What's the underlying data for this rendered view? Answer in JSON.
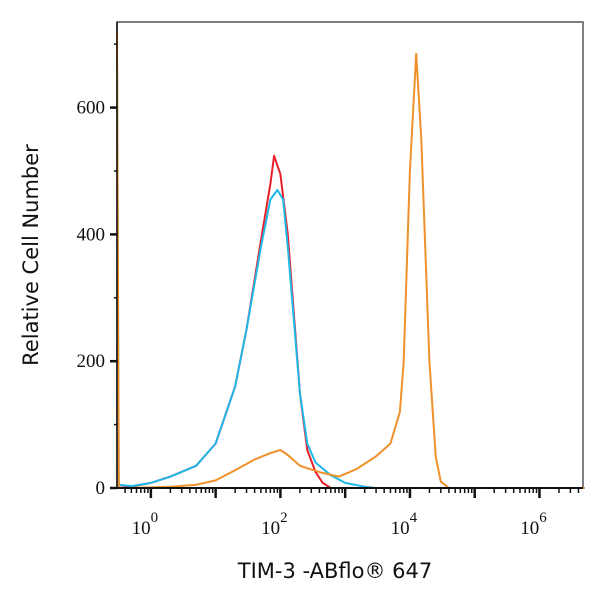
{
  "chart_data": {
    "type": "line",
    "title": "",
    "xlabel": "TIM-3 -ABflo® 647",
    "ylabel": "Relative Cell Number",
    "xscale": "log",
    "xlim": [
      0.3,
      4700000
    ],
    "ylim": [
      0,
      735
    ],
    "x_ticks": [
      {
        "value": 1,
        "base": "10",
        "exp": "0"
      },
      {
        "value": 100,
        "base": "10",
        "exp": "2"
      },
      {
        "value": 10000,
        "base": "10",
        "exp": "4"
      },
      {
        "value": 1000000,
        "base": "10",
        "exp": "6"
      }
    ],
    "y_ticks": [
      0,
      200,
      400,
      600
    ],
    "y_tick_labels": [
      "0",
      "200",
      "400",
      "600"
    ],
    "grid": false,
    "legend": "none",
    "series": [
      {
        "color": "#e8202a",
        "x": [
          0.3,
          0.5,
          1,
          2,
          5,
          10,
          20,
          30,
          50,
          70,
          80,
          100,
          130,
          160,
          200,
          260,
          350,
          450,
          600,
          1000,
          5000000
        ],
        "y": [
          0,
          2,
          8,
          18,
          35,
          70,
          160,
          250,
          390,
          480,
          524,
          495,
          400,
          280,
          150,
          60,
          25,
          8,
          0,
          0,
          0
        ]
      },
      {
        "color": "#1fb8e8",
        "x": [
          0.3,
          0.32,
          0.5,
          1,
          2,
          5,
          10,
          20,
          30,
          50,
          70,
          90,
          110,
          130,
          160,
          200,
          260,
          350,
          600,
          1000,
          2000,
          3000,
          5000000
        ],
        "y": [
          680,
          5,
          3,
          8,
          18,
          35,
          70,
          160,
          250,
          380,
          455,
          470,
          455,
          380,
          270,
          150,
          70,
          40,
          20,
          8,
          2,
          0,
          0
        ]
      },
      {
        "color": "#f0902a",
        "x": [
          0.3,
          0.32,
          0.5,
          2,
          5,
          10,
          20,
          40,
          70,
          100,
          130,
          200,
          400,
          800,
          1500,
          3000,
          5000,
          7000,
          8000,
          10000,
          12500,
          15000,
          20000,
          25000,
          30000,
          40000,
          5000000
        ],
        "y": [
          720,
          0,
          0,
          2,
          5,
          12,
          28,
          45,
          55,
          60,
          52,
          35,
          25,
          18,
          30,
          50,
          70,
          120,
          200,
          500,
          685,
          550,
          200,
          50,
          10,
          0,
          0
        ]
      }
    ]
  }
}
